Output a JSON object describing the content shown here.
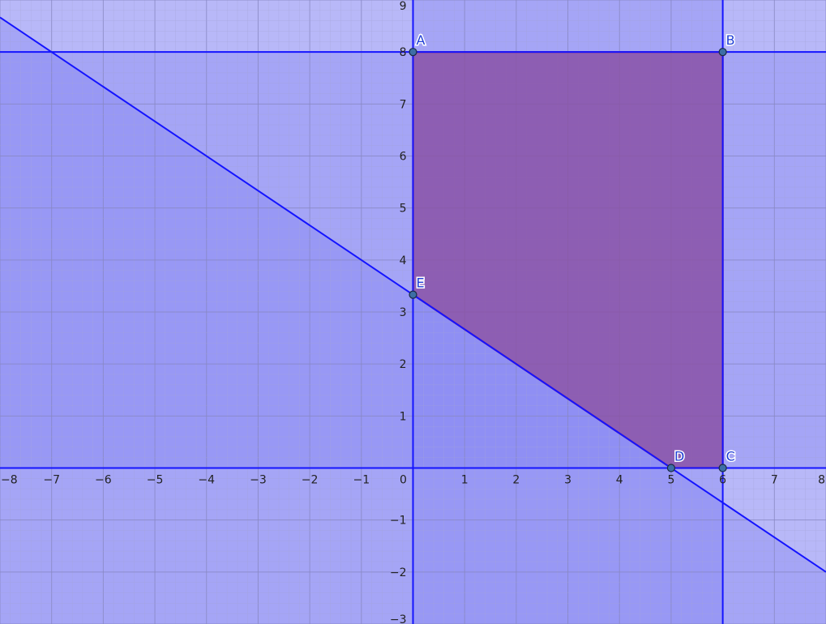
{
  "plane": {
    "x_range": [
      -8,
      8
    ],
    "y_range": [
      -3,
      9
    ],
    "minor_grid_step": 0.2,
    "major_grid_step": 1,
    "grid": true,
    "x_ticks": [
      {
        "value": -8,
        "label": "−8"
      },
      {
        "value": -7,
        "label": "−7"
      },
      {
        "value": -6,
        "label": "−6"
      },
      {
        "value": -5,
        "label": "−5"
      },
      {
        "value": -4,
        "label": "−4"
      },
      {
        "value": -3,
        "label": "−3"
      },
      {
        "value": -2,
        "label": "−2"
      },
      {
        "value": -1,
        "label": "−1"
      },
      {
        "value": 0,
        "label": "0"
      },
      {
        "value": 1,
        "label": "1"
      },
      {
        "value": 2,
        "label": "2"
      },
      {
        "value": 3,
        "label": "3"
      },
      {
        "value": 4,
        "label": "4"
      },
      {
        "value": 5,
        "label": "5"
      },
      {
        "value": 6,
        "label": "6"
      },
      {
        "value": 7,
        "label": "7"
      },
      {
        "value": 8,
        "label": "8"
      }
    ],
    "y_ticks": [
      {
        "value": -3,
        "label": "−3"
      },
      {
        "value": -2,
        "label": "−2"
      },
      {
        "value": -1,
        "label": "−1"
      },
      {
        "value": 1,
        "label": "1"
      },
      {
        "value": 2,
        "label": "2"
      },
      {
        "value": 3,
        "label": "3"
      },
      {
        "value": 4,
        "label": "4"
      },
      {
        "value": 5,
        "label": "5"
      },
      {
        "value": 6,
        "label": "6"
      },
      {
        "value": 7,
        "label": "7"
      },
      {
        "value": 8,
        "label": "8"
      },
      {
        "value": 9,
        "label": "9"
      }
    ]
  },
  "constraint_lines": [
    {
      "id": "y-equals-8",
      "kind": "horizontal",
      "y": 8
    },
    {
      "id": "y-equals-0",
      "kind": "horizontal",
      "y": 0
    },
    {
      "id": "x-equals-0",
      "kind": "vertical",
      "x": 0
    },
    {
      "id": "x-equals-6",
      "kind": "vertical",
      "x": 6
    },
    {
      "id": "slanted-line",
      "kind": "line",
      "points": [
        [
          5,
          0
        ],
        [
          0,
          3.333
        ]
      ]
    }
  ],
  "feasible_region": {
    "vertices": [
      "A",
      "B",
      "C",
      "D",
      "E"
    ]
  },
  "points": [
    {
      "label": "A",
      "x": 0,
      "y": 8
    },
    {
      "label": "B",
      "x": 6,
      "y": 8
    },
    {
      "label": "C",
      "x": 6,
      "y": 0
    },
    {
      "label": "D",
      "x": 5,
      "y": 0
    },
    {
      "label": "E",
      "x": 0,
      "y": 3.333
    }
  ],
  "colors": {
    "background": "#ffffff",
    "shade": "#7b7bf2",
    "minor_grid": "#a5a5d6",
    "major_grid": "#8787c2",
    "constraint_line": "#1414ff",
    "region_fill": "#8b4ea0",
    "region_stroke": "#9c1a6e",
    "point_fill": "#3d6ea6",
    "point_stroke": "#1a2a44",
    "point_label": "#1f3fd6"
  }
}
